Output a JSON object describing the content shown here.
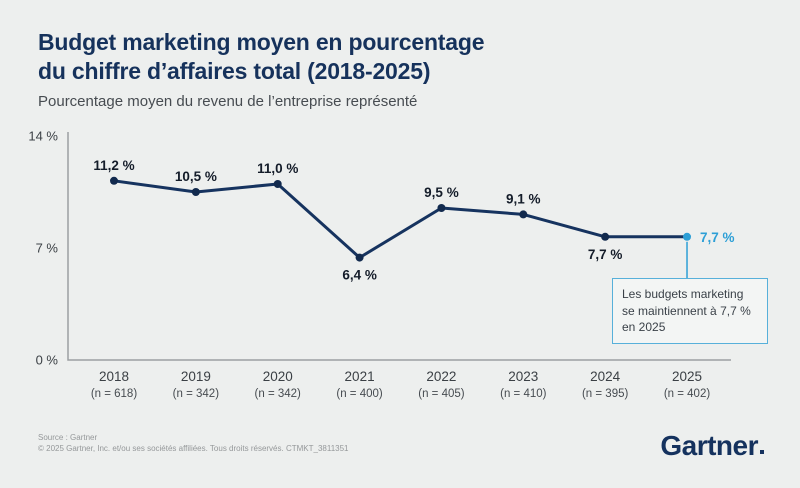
{
  "header": {
    "title_lines": [
      "Budget marketing moyen en pourcentage",
      "du chiffre d’affaires total (2018-2025)"
    ],
    "subtitle": "Pourcentage moyen du revenu de l’entreprise représenté"
  },
  "chart_data": {
    "type": "line",
    "title": "Budget marketing moyen en pourcentage du chiffre d’affaires total (2018-2025)",
    "subtitle": "Pourcentage moyen du revenu de l’entreprise représenté",
    "categories": [
      "2018",
      "2019",
      "2020",
      "2021",
      "2022",
      "2023",
      "2024",
      "2025"
    ],
    "sample_sizes": [
      "(n = 618)",
      "(n = 342)",
      "(n = 342)",
      "(n = 400)",
      "(n = 405)",
      "(n = 410)",
      "(n = 395)",
      "(n = 402)"
    ],
    "values": [
      11.2,
      10.5,
      11.0,
      6.4,
      9.5,
      9.1,
      7.7,
      7.7
    ],
    "value_labels": [
      "11,2 %",
      "10,5 %",
      "11,0 %",
      "6,4 %",
      "9,5 %",
      "9,1 %",
      "7,7 %",
      "7,7 %"
    ],
    "label_positions": [
      "above",
      "above",
      "above",
      "below",
      "above",
      "above",
      "below",
      "right"
    ],
    "ylim": [
      0,
      14
    ],
    "ytick_values": [
      0,
      7,
      14
    ],
    "ytick_labels": [
      "0 %",
      "7 %",
      "14 %"
    ],
    "grid": false,
    "legend": "none",
    "line_color": "#16335f",
    "point_color": "#122a4e",
    "value_label_color": "#141c29",
    "highlight_color": "#2d9fd6",
    "axis_color": "#9b9fa2",
    "tick_label_color": "#3b4045"
  },
  "annotation": {
    "lines": [
      "Les budgets marketing",
      "se maintiennent à 7,7 %",
      "en 2025"
    ],
    "text": "Les budgets marketing se maintiennent à 7,7 % en 2025"
  },
  "footer": {
    "source": "Source : Gartner",
    "copyright": "© 2025 Gartner, Inc. et/ou ses sociétés affiliées. Tous droits réservés. CTMKT_3811351"
  },
  "logo": {
    "text": "Gartner"
  }
}
